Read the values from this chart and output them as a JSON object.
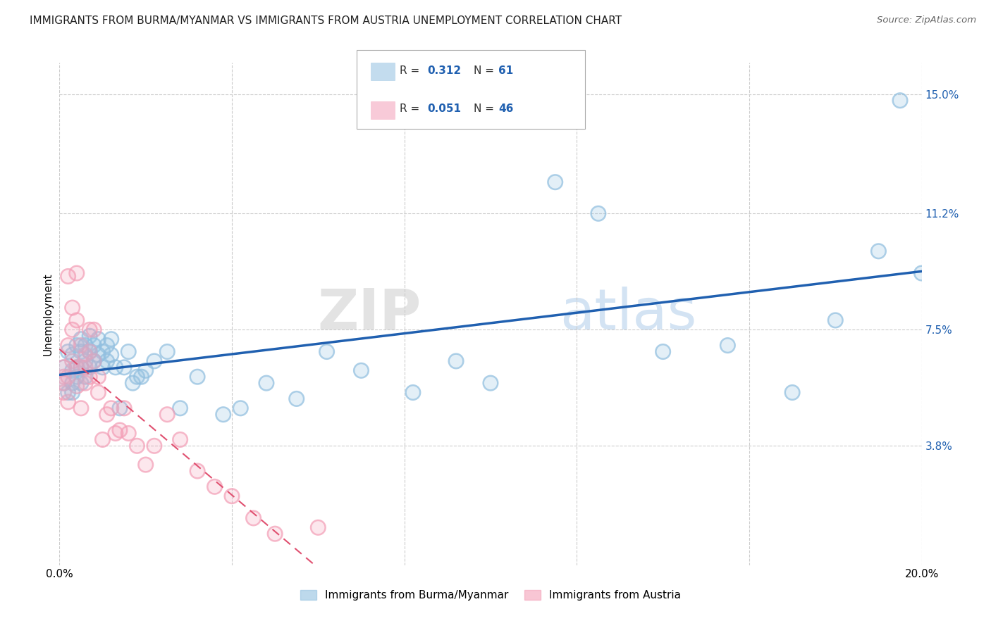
{
  "title": "IMMIGRANTS FROM BURMA/MYANMAR VS IMMIGRANTS FROM AUSTRIA UNEMPLOYMENT CORRELATION CHART",
  "source": "Source: ZipAtlas.com",
  "ylabel": "Unemployment",
  "xlim": [
    0.0,
    0.2
  ],
  "ylim": [
    0.0,
    0.16
  ],
  "x_ticks": [
    0.0,
    0.04,
    0.08,
    0.12,
    0.16,
    0.2
  ],
  "x_tick_labels": [
    "0.0%",
    "",
    "",
    "",
    "",
    "20.0%"
  ],
  "y_tick_labels_right": [
    "15.0%",
    "11.2%",
    "7.5%",
    "3.8%"
  ],
  "y_tick_values_right": [
    0.15,
    0.112,
    0.075,
    0.038
  ],
  "series1_name": "Immigrants from Burma/Myanmar",
  "series1_color": "#92c0e0",
  "series1_edge_color": "#92c0e0",
  "series1_line_color": "#2060b0",
  "series1_x": [
    0.001,
    0.001,
    0.002,
    0.002,
    0.003,
    0.003,
    0.003,
    0.003,
    0.004,
    0.004,
    0.004,
    0.005,
    0.005,
    0.005,
    0.005,
    0.006,
    0.006,
    0.006,
    0.007,
    0.007,
    0.007,
    0.008,
    0.008,
    0.009,
    0.009,
    0.01,
    0.01,
    0.011,
    0.011,
    0.012,
    0.012,
    0.013,
    0.014,
    0.015,
    0.016,
    0.017,
    0.018,
    0.019,
    0.02,
    0.022,
    0.025,
    0.028,
    0.032,
    0.038,
    0.042,
    0.048,
    0.055,
    0.062,
    0.07,
    0.082,
    0.092,
    0.1,
    0.115,
    0.125,
    0.14,
    0.155,
    0.17,
    0.18,
    0.19,
    0.195,
    0.2
  ],
  "series1_y": [
    0.058,
    0.063,
    0.055,
    0.068,
    0.055,
    0.058,
    0.062,
    0.067,
    0.06,
    0.063,
    0.07,
    0.058,
    0.063,
    0.068,
    0.072,
    0.06,
    0.065,
    0.07,
    0.063,
    0.068,
    0.073,
    0.065,
    0.07,
    0.067,
    0.072,
    0.063,
    0.068,
    0.065,
    0.07,
    0.067,
    0.072,
    0.063,
    0.05,
    0.063,
    0.068,
    0.058,
    0.06,
    0.06,
    0.062,
    0.065,
    0.068,
    0.05,
    0.06,
    0.048,
    0.05,
    0.058,
    0.053,
    0.068,
    0.062,
    0.055,
    0.065,
    0.058,
    0.122,
    0.112,
    0.068,
    0.07,
    0.055,
    0.078,
    0.1,
    0.148,
    0.093
  ],
  "series2_name": "Immigrants from Austria",
  "series2_color": "#f4a0b8",
  "series2_edge_color": "#f4a0b8",
  "series2_line_color": "#e05070",
  "series2_x": [
    0.001,
    0.001,
    0.001,
    0.001,
    0.002,
    0.002,
    0.002,
    0.002,
    0.003,
    0.003,
    0.003,
    0.004,
    0.004,
    0.004,
    0.004,
    0.005,
    0.005,
    0.005,
    0.006,
    0.006,
    0.006,
    0.007,
    0.007,
    0.007,
    0.008,
    0.008,
    0.009,
    0.009,
    0.01,
    0.011,
    0.012,
    0.013,
    0.014,
    0.015,
    0.016,
    0.018,
    0.02,
    0.022,
    0.025,
    0.028,
    0.032,
    0.036,
    0.04,
    0.045,
    0.05,
    0.06
  ],
  "series2_y": [
    0.06,
    0.063,
    0.055,
    0.058,
    0.092,
    0.07,
    0.06,
    0.052,
    0.082,
    0.075,
    0.065,
    0.093,
    0.078,
    0.063,
    0.057,
    0.07,
    0.063,
    0.05,
    0.067,
    0.063,
    0.058,
    0.075,
    0.068,
    0.06,
    0.075,
    0.065,
    0.06,
    0.055,
    0.04,
    0.048,
    0.05,
    0.042,
    0.043,
    0.05,
    0.042,
    0.038,
    0.032,
    0.038,
    0.048,
    0.04,
    0.03,
    0.025,
    0.022,
    0.015,
    0.01,
    0.012
  ],
  "watermark_zip": "ZIP",
  "watermark_atlas": "atlas",
  "background_color": "#ffffff",
  "grid_color": "#cccccc",
  "title_fontsize": 11,
  "axis_label_fontsize": 11,
  "tick_fontsize": 11,
  "right_tick_color": "#2060b0"
}
